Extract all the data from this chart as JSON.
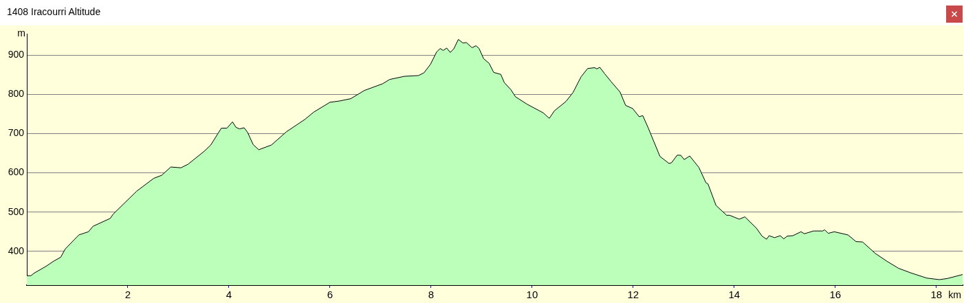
{
  "chart_data": {
    "type": "area",
    "title": "1408 Iracourri Altitude",
    "xlabel": "km",
    "ylabel": "m",
    "x": [
      0,
      0.08,
      0.15,
      0.38,
      0.53,
      0.67,
      0.76,
      1.03,
      1.22,
      1.31,
      1.65,
      1.71,
      2.17,
      2.51,
      2.67,
      2.85,
      3.05,
      3.19,
      3.51,
      3.64,
      3.85,
      3.96,
      4.07,
      4.14,
      4.21,
      4.3,
      4.37,
      4.48,
      4.59,
      4.84,
      5.14,
      5.5,
      5.68,
      6.0,
      6.18,
      6.41,
      6.68,
      7.04,
      7.18,
      7.47,
      7.75,
      7.86,
      7.99,
      8.11,
      8.18,
      8.24,
      8.31,
      8.38,
      8.45,
      8.54,
      8.63,
      8.7,
      8.81,
      8.89,
      8.95,
      9.04,
      9.15,
      9.24,
      9.38,
      9.45,
      9.58,
      9.67,
      9.9,
      10.22,
      10.34,
      10.44,
      10.67,
      10.81,
      10.97,
      11.1,
      11.24,
      11.28,
      11.34,
      11.44,
      11.56,
      11.74,
      11.85,
      11.99,
      12.12,
      12.19,
      12.3,
      12.53,
      12.71,
      12.76,
      12.87,
      12.94,
      13.01,
      13.12,
      13.3,
      13.44,
      13.48,
      13.64,
      13.85,
      13.91,
      14.1,
      14.21,
      14.44,
      14.55,
      14.64,
      14.69,
      14.8,
      14.91,
      14.98,
      15.05,
      15.16,
      15.32,
      15.39,
      15.57,
      15.75,
      15.79,
      15.86,
      15.98,
      16.25,
      16.41,
      16.54,
      16.79,
      17.02,
      17.25,
      17.5,
      17.81,
      18.06,
      18.22,
      18.52
    ],
    "series": [
      {
        "color": "#bbffbb",
        "values": [
          338,
          338,
          345,
          362,
          375,
          385,
          406,
          442,
          450,
          464,
          484,
          495,
          553,
          586,
          594,
          615,
          613,
          622,
          655,
          671,
          714,
          714,
          730,
          716,
          712,
          715,
          703,
          672,
          659,
          671,
          705,
          736,
          755,
          780,
          783,
          789,
          810,
          827,
          838,
          846,
          848,
          855,
          877,
          908,
          917,
          912,
          918,
          907,
          916,
          940,
          931,
          932,
          919,
          924,
          917,
          891,
          879,
          856,
          851,
          830,
          812,
          794,
          775,
          753,
          739,
          758,
          782,
          805,
          845,
          866,
          868,
          865,
          869,
          852,
          833,
          806,
          772,
          764,
          743,
          746,
          714,
          642,
          624,
          626,
          645,
          645,
          634,
          643,
          614,
          575,
          572,
          517,
          492,
          492,
          482,
          488,
          459,
          439,
          431,
          440,
          435,
          440,
          432,
          439,
          440,
          450,
          445,
          452,
          452,
          455,
          446,
          450,
          442,
          425,
          424,
          395,
          375,
          357,
          345,
          332,
          328,
          331,
          341
        ]
      }
    ],
    "xlim": [
      0,
      18.52
    ],
    "ylim": [
      314,
      954
    ],
    "xticks": [
      2,
      4,
      6,
      8,
      10,
      12,
      14,
      16,
      18
    ],
    "yticks": [
      400,
      500,
      600,
      700,
      800,
      900
    ],
    "grid": "y",
    "legend": false,
    "marker": "none",
    "line_style": "solid"
  }
}
